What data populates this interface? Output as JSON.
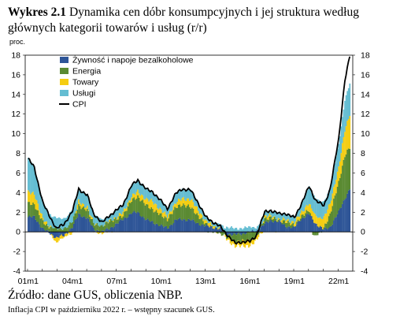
{
  "header": {
    "label": "Wykres 2.1",
    "title": "Dynamika cen dóbr konsumpcyjnych i jej struktura według głównych kategorii towarów i usług (r/r)"
  },
  "unit": "proc.",
  "footer": {
    "source": "Źródło: dane GUS, obliczenia NBP.",
    "note": "Inflacja CPI w październiku 2022 r. – wstępny szacunek GUS."
  },
  "colors": {
    "food": "#2e5597",
    "energy": "#5a8a32",
    "goods": "#f5cd12",
    "services": "#64bdd2",
    "cpi": "#000000"
  },
  "chart_data": {
    "type": "area",
    "x_ticks": [
      "01m1",
      "04m1",
      "07m1",
      "10m1",
      "13m1",
      "16m1",
      "19m1",
      "22m1"
    ],
    "ylim": [
      -4,
      18
    ],
    "y_ticks": [
      -4,
      -2,
      0,
      2,
      4,
      6,
      8,
      10,
      12,
      14,
      16,
      18
    ],
    "legend": [
      "Żywność i napoje bezalkoholowe",
      "Energia",
      "Towary",
      "Usługi",
      "CPI"
    ],
    "legend_position": "top-left",
    "x_start": "2001-01",
    "x_end": "2022-10",
    "series": [
      {
        "name": "Żywność i napoje bezalkoholowe",
        "anchors": [
          [
            "2001-01",
            1.5
          ],
          [
            "2001-06",
            1.5
          ],
          [
            "2002-01",
            0.3
          ],
          [
            "2002-12",
            -0.6
          ],
          [
            "2003-06",
            -0.4
          ],
          [
            "2004-01",
            0.5
          ],
          [
            "2004-06",
            1.8
          ],
          [
            "2005-01",
            1.4
          ],
          [
            "2005-06",
            0.3
          ],
          [
            "2006-01",
            0.0
          ],
          [
            "2006-06",
            0.3
          ],
          [
            "2007-01",
            0.8
          ],
          [
            "2007-06",
            1.3
          ],
          [
            "2008-01",
            1.9
          ],
          [
            "2008-06",
            2.0
          ],
          [
            "2009-01",
            1.2
          ],
          [
            "2009-06",
            1.0
          ],
          [
            "2010-01",
            0.6
          ],
          [
            "2010-06",
            0.4
          ],
          [
            "2011-01",
            1.2
          ],
          [
            "2011-06",
            1.3
          ],
          [
            "2012-01",
            1.2
          ],
          [
            "2012-06",
            0.9
          ],
          [
            "2013-01",
            0.6
          ],
          [
            "2013-06",
            0.5
          ],
          [
            "2014-01",
            0.3
          ],
          [
            "2014-06",
            -0.2
          ],
          [
            "2015-01",
            -0.3
          ],
          [
            "2015-06",
            -0.2
          ],
          [
            "2016-01",
            0.0
          ],
          [
            "2016-06",
            0.1
          ],
          [
            "2017-01",
            0.8
          ],
          [
            "2017-06",
            1.2
          ],
          [
            "2018-01",
            1.0
          ],
          [
            "2018-06",
            0.6
          ],
          [
            "2019-01",
            0.4
          ],
          [
            "2019-06",
            1.3
          ],
          [
            "2020-01",
            1.8
          ],
          [
            "2020-06",
            0.9
          ],
          [
            "2021-01",
            0.2
          ],
          [
            "2021-06",
            0.5
          ],
          [
            "2022-01",
            2.0
          ],
          [
            "2022-06",
            3.4
          ],
          [
            "2022-10",
            4.4
          ]
        ]
      },
      {
        "name": "Energia",
        "anchors": [
          [
            "2001-01",
            1.4
          ],
          [
            "2001-06",
            1.3
          ],
          [
            "2002-01",
            0.7
          ],
          [
            "2002-12",
            0.3
          ],
          [
            "2003-06",
            0.4
          ],
          [
            "2004-01",
            0.6
          ],
          [
            "2004-06",
            0.9
          ],
          [
            "2005-01",
            0.8
          ],
          [
            "2005-06",
            0.6
          ],
          [
            "2006-01",
            0.5
          ],
          [
            "2006-06",
            0.8
          ],
          [
            "2007-01",
            0.5
          ],
          [
            "2007-06",
            0.4
          ],
          [
            "2008-01",
            1.3
          ],
          [
            "2008-06",
            1.6
          ],
          [
            "2009-01",
            1.5
          ],
          [
            "2009-06",
            1.3
          ],
          [
            "2010-01",
            1.1
          ],
          [
            "2010-06",
            0.9
          ],
          [
            "2011-01",
            1.3
          ],
          [
            "2011-06",
            1.5
          ],
          [
            "2012-01",
            1.3
          ],
          [
            "2012-06",
            0.9
          ],
          [
            "2013-01",
            0.2
          ],
          [
            "2013-06",
            0.0
          ],
          [
            "2014-01",
            -0.2
          ],
          [
            "2014-06",
            -0.3
          ],
          [
            "2015-01",
            -0.8
          ],
          [
            "2015-06",
            -0.7
          ],
          [
            "2016-01",
            -0.9
          ],
          [
            "2016-06",
            -0.5
          ],
          [
            "2017-01",
            0.5
          ],
          [
            "2017-06",
            0.3
          ],
          [
            "2018-01",
            0.1
          ],
          [
            "2018-06",
            0.5
          ],
          [
            "2019-01",
            0.2
          ],
          [
            "2019-06",
            0.2
          ],
          [
            "2020-01",
            0.4
          ],
          [
            "2020-06",
            -0.5
          ],
          [
            "2021-01",
            0.2
          ],
          [
            "2021-06",
            1.3
          ],
          [
            "2022-01",
            3.0
          ],
          [
            "2022-06",
            4.4
          ],
          [
            "2022-10",
            4.2
          ]
        ]
      },
      {
        "name": "Towary",
        "anchors": [
          [
            "2001-01",
            1.2
          ],
          [
            "2001-06",
            1.0
          ],
          [
            "2002-01",
            0.4
          ],
          [
            "2002-12",
            -0.4
          ],
          [
            "2003-06",
            -0.3
          ],
          [
            "2004-01",
            -0.1
          ],
          [
            "2004-06",
            0.4
          ],
          [
            "2005-01",
            0.3
          ],
          [
            "2005-06",
            0.0
          ],
          [
            "2006-01",
            -0.1
          ],
          [
            "2006-06",
            0.0
          ],
          [
            "2007-01",
            0.2
          ],
          [
            "2007-06",
            0.3
          ],
          [
            "2008-01",
            0.4
          ],
          [
            "2008-06",
            0.5
          ],
          [
            "2009-01",
            0.6
          ],
          [
            "2009-06",
            0.8
          ],
          [
            "2010-01",
            0.5
          ],
          [
            "2010-06",
            0.3
          ],
          [
            "2011-01",
            0.5
          ],
          [
            "2011-06",
            0.6
          ],
          [
            "2012-01",
            0.8
          ],
          [
            "2012-06",
            0.6
          ],
          [
            "2013-01",
            0.3
          ],
          [
            "2013-06",
            0.2
          ],
          [
            "2014-01",
            0.1
          ],
          [
            "2014-06",
            -0.2
          ],
          [
            "2015-01",
            -0.4
          ],
          [
            "2015-06",
            -0.5
          ],
          [
            "2016-01",
            -0.5
          ],
          [
            "2016-06",
            -0.4
          ],
          [
            "2017-01",
            0.2
          ],
          [
            "2017-06",
            0.2
          ],
          [
            "2018-01",
            0.1
          ],
          [
            "2018-06",
            0.2
          ],
          [
            "2019-01",
            0.3
          ],
          [
            "2019-06",
            0.4
          ],
          [
            "2020-01",
            0.7
          ],
          [
            "2020-06",
            0.9
          ],
          [
            "2021-01",
            1.0
          ],
          [
            "2021-06",
            1.1
          ],
          [
            "2022-01",
            1.5
          ],
          [
            "2022-06",
            2.6
          ],
          [
            "2022-10",
            3.4
          ]
        ]
      },
      {
        "name": "Usługi",
        "anchors": [
          [
            "2001-01",
            3.3
          ],
          [
            "2001-06",
            2.8
          ],
          [
            "2002-01",
            1.5
          ],
          [
            "2002-12",
            1.0
          ],
          [
            "2003-06",
            1.1
          ],
          [
            "2004-01",
            1.1
          ],
          [
            "2004-06",
            1.3
          ],
          [
            "2005-01",
            1.2
          ],
          [
            "2005-06",
            1.0
          ],
          [
            "2006-01",
            0.6
          ],
          [
            "2006-06",
            0.5
          ],
          [
            "2007-01",
            0.7
          ],
          [
            "2007-06",
            0.8
          ],
          [
            "2008-01",
            1.1
          ],
          [
            "2008-06",
            1.2
          ],
          [
            "2009-01",
            1.0
          ],
          [
            "2009-06",
            1.0
          ],
          [
            "2010-01",
            0.9
          ],
          [
            "2010-06",
            0.8
          ],
          [
            "2011-01",
            0.9
          ],
          [
            "2011-06",
            1.0
          ],
          [
            "2012-01",
            0.9
          ],
          [
            "2012-06",
            0.8
          ],
          [
            "2013-01",
            0.4
          ],
          [
            "2013-06",
            0.4
          ],
          [
            "2014-01",
            0.3
          ],
          [
            "2014-06",
            0.5
          ],
          [
            "2015-01",
            0.3
          ],
          [
            "2015-06",
            0.4
          ],
          [
            "2016-01",
            0.4
          ],
          [
            "2016-06",
            0.4
          ],
          [
            "2017-01",
            0.5
          ],
          [
            "2017-06",
            0.5
          ],
          [
            "2018-01",
            0.6
          ],
          [
            "2018-06",
            0.6
          ],
          [
            "2019-01",
            0.5
          ],
          [
            "2019-06",
            0.8
          ],
          [
            "2020-01",
            1.7
          ],
          [
            "2020-06",
            1.8
          ],
          [
            "2021-01",
            1.6
          ],
          [
            "2021-06",
            1.6
          ],
          [
            "2022-01",
            2.4
          ],
          [
            "2022-06",
            3.1
          ],
          [
            "2022-10",
            3.1
          ]
        ]
      },
      {
        "name": "CPI",
        "anchors": [
          [
            "2001-01",
            7.4
          ],
          [
            "2001-06",
            6.6
          ],
          [
            "2002-01",
            2.9
          ],
          [
            "2002-12",
            0.3
          ],
          [
            "2003-06",
            0.8
          ],
          [
            "2004-01",
            2.1
          ],
          [
            "2004-06",
            4.4
          ],
          [
            "2005-01",
            3.7
          ],
          [
            "2005-06",
            1.9
          ],
          [
            "2006-01",
            0.9
          ],
          [
            "2006-06",
            1.6
          ],
          [
            "2007-01",
            2.2
          ],
          [
            "2007-06",
            2.8
          ],
          [
            "2008-01",
            4.7
          ],
          [
            "2008-06",
            5.3
          ],
          [
            "2009-01",
            4.3
          ],
          [
            "2009-06",
            4.1
          ],
          [
            "2010-01",
            3.1
          ],
          [
            "2010-06",
            2.4
          ],
          [
            "2011-01",
            3.9
          ],
          [
            "2011-06",
            4.4
          ],
          [
            "2012-01",
            4.2
          ],
          [
            "2012-06",
            3.2
          ],
          [
            "2013-01",
            1.5
          ],
          [
            "2013-06",
            1.1
          ],
          [
            "2014-01",
            0.5
          ],
          [
            "2014-06",
            -0.2
          ],
          [
            "2015-01",
            -1.2
          ],
          [
            "2015-06",
            -1.0
          ],
          [
            "2016-01",
            -1.0
          ],
          [
            "2016-06",
            -0.4
          ],
          [
            "2017-01",
            2.0
          ],
          [
            "2017-06",
            2.2
          ],
          [
            "2018-01",
            1.8
          ],
          [
            "2018-06",
            1.9
          ],
          [
            "2019-01",
            1.4
          ],
          [
            "2019-06",
            2.7
          ],
          [
            "2020-01",
            4.6
          ],
          [
            "2020-06",
            3.3
          ],
          [
            "2021-01",
            2.6
          ],
          [
            "2021-06",
            4.4
          ],
          [
            "2022-01",
            9.4
          ],
          [
            "2022-06",
            15.5
          ],
          [
            "2022-10",
            17.9
          ]
        ]
      }
    ]
  }
}
